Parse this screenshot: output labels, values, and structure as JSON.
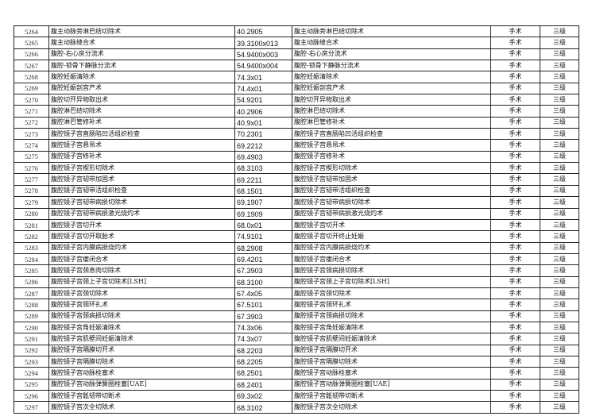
{
  "rows": [
    [
      "5264",
      "腹主动脉旁淋巴结切除术",
      "40.2905",
      "腹主动脉旁淋巴结切除术",
      "手术",
      "三级"
    ],
    [
      "5265",
      "腹主动脉缝合术",
      "39.3100x013",
      "腹主动脉缝合术",
      "手术",
      "三级"
    ],
    [
      "5266",
      "腹腔-右心房分流术",
      "54.9400x003",
      "腹腔-右心房分流术",
      "手术",
      "三级"
    ],
    [
      "5267",
      "腹腔-锁骨下静脉分流术",
      "54.9400x004",
      "腹腔-锁骨下静脉分流术",
      "手术",
      "三级"
    ],
    [
      "5268",
      "腹腔妊娠清除术",
      "74.3x01",
      "腹腔妊娠清除术",
      "手术",
      "三级"
    ],
    [
      "5269",
      "腹腔妊娠剖宫产术",
      "74.4x01",
      "腹腔妊娠剖宫产术",
      "手术",
      "三级"
    ],
    [
      "5270",
      "腹腔切开异物取出术",
      "54.9201",
      "腹腔切开异物取出术",
      "手术",
      "三级"
    ],
    [
      "5271",
      "腹腔淋巴结切除术",
      "40.2906",
      "腹腔淋巴结切除术",
      "手术",
      "三级"
    ],
    [
      "5272",
      "腹腔淋巴管修补术",
      "40.9x01",
      "腹腔淋巴管修补术",
      "手术",
      "三级"
    ],
    [
      "5273",
      "腹腔镜子宫直肠陷凹活组织检查",
      "70.2301",
      "腹腔镜子宫直肠陷凹活组织检查",
      "手术",
      "三级"
    ],
    [
      "5274",
      "腹腔镜子宫悬吊术",
      "69.2212",
      "腹腔镜子宫悬吊术",
      "手术",
      "三级"
    ],
    [
      "5275",
      "腹腔镜子宫修补术",
      "69.4903",
      "腹腔镜子宫修补术",
      "手术",
      "三级"
    ],
    [
      "5276",
      "腹腔镜子宫楔形切除术",
      "68.3103",
      "腹腔镜子宫楔形切除术",
      "手术",
      "三级"
    ],
    [
      "5277",
      "腹腔镜子宫韧带加固术",
      "69.2211",
      "腹腔镜子宫韧带加固术",
      "手术",
      "三级"
    ],
    [
      "5278",
      "腹腔镜子宫韧带活组织检查",
      "68.1501",
      "腹腔镜子宫韧带活组织检查",
      "手术",
      "三级"
    ],
    [
      "5279",
      "腹腔镜子宫韧带病损切除术",
      "69.1907",
      "腹腔镜子宫韧带病损切除术",
      "手术",
      "三级"
    ],
    [
      "5280",
      "腹腔镜子宫韧带病损激光烧灼术",
      "69.1909",
      "腹腔镜子宫韧带病损激光烧灼术",
      "手术",
      "三级"
    ],
    [
      "5281",
      "腹腔镜子宫切开术",
      "68.0x01",
      "腹腔镜子宫切开术",
      "手术",
      "三级"
    ],
    [
      "5282",
      "腹腔镜子宫切开取胎术",
      "74.9101",
      "腹腔镜子宫切开终止妊娠",
      "手术",
      "三级"
    ],
    [
      "5283",
      "腹腔镜子宫内膜病损烧灼术",
      "68.2908",
      "腹腔镜子宫内膜病损烧灼术",
      "手术",
      "三级"
    ],
    [
      "5284",
      "腹腔镜子宫瘘闭合术",
      "69.4201",
      "腹腔镜子宫瘘闭合术",
      "手术",
      "三级"
    ],
    [
      "5285",
      "腹腔镜子宫颈息肉切除术",
      "67.3903",
      "腹腔镜子宫颈病损切除术",
      "手术",
      "三级"
    ],
    [
      "5286",
      "腹腔镜子宫颈上子宫切除术[LSH]",
      "68.3100",
      "腹腔镜子宫颈上子宫切除术[LSH]",
      "手术",
      "三级"
    ],
    [
      "5287",
      "腹腔镜子宫颈切除术",
      "67.4x05",
      "腹腔镜子宫颈切除术",
      "手术",
      "三级"
    ],
    [
      "5288",
      "腹腔镜子宫颈环扎术",
      "67.5101",
      "腹腔镜子宫颈环扎术",
      "手术",
      "三级"
    ],
    [
      "5289",
      "腹腔镜子宫颈病损切除术",
      "67.3903",
      "腹腔镜子宫颈病损切除术",
      "手术",
      "三级"
    ],
    [
      "5290",
      "腹腔镜子宫角妊娠清除术",
      "74.3x06",
      "腹腔镜子宫角妊娠清除术",
      "手术",
      "三级"
    ],
    [
      "5291",
      "腹腔镜子宫肌壁间妊娠清除术",
      "74.3x07",
      "腹腔镜子宫肌壁间妊娠清除术",
      "手术",
      "三级"
    ],
    [
      "5292",
      "腹腔镜子宫隔膜切开术",
      "68.2203",
      "腹腔镜子宫隔膜切开术",
      "手术",
      "三级"
    ],
    [
      "5293",
      "腹腔镜子宫隔膜切除术",
      "68.2205",
      "腹腔镜子宫隔膜切除术",
      "手术",
      "三级"
    ],
    [
      "5294",
      "腹腔镜子宫动脉栓塞术",
      "68.2501",
      "腹腔镜子宫动脉栓塞术",
      "手术",
      "三级"
    ],
    [
      "5295",
      "腹腔镜子宫动脉弹簧圈栓塞[UAE]",
      "68.2401",
      "腹腔镜子宫动脉弹簧圈栓塞[UAE]",
      "手术",
      "三级"
    ],
    [
      "5296",
      "腹腔镜子宫骶韧带切断术",
      "69.3x02",
      "腹腔镜子宫骶韧带切断术",
      "手术",
      "三级"
    ],
    [
      "5297",
      "腹腔镜子宫次全切除术",
      "68.3102",
      "腹腔镜子宫次全切除术",
      "手术",
      "三级"
    ]
  ]
}
